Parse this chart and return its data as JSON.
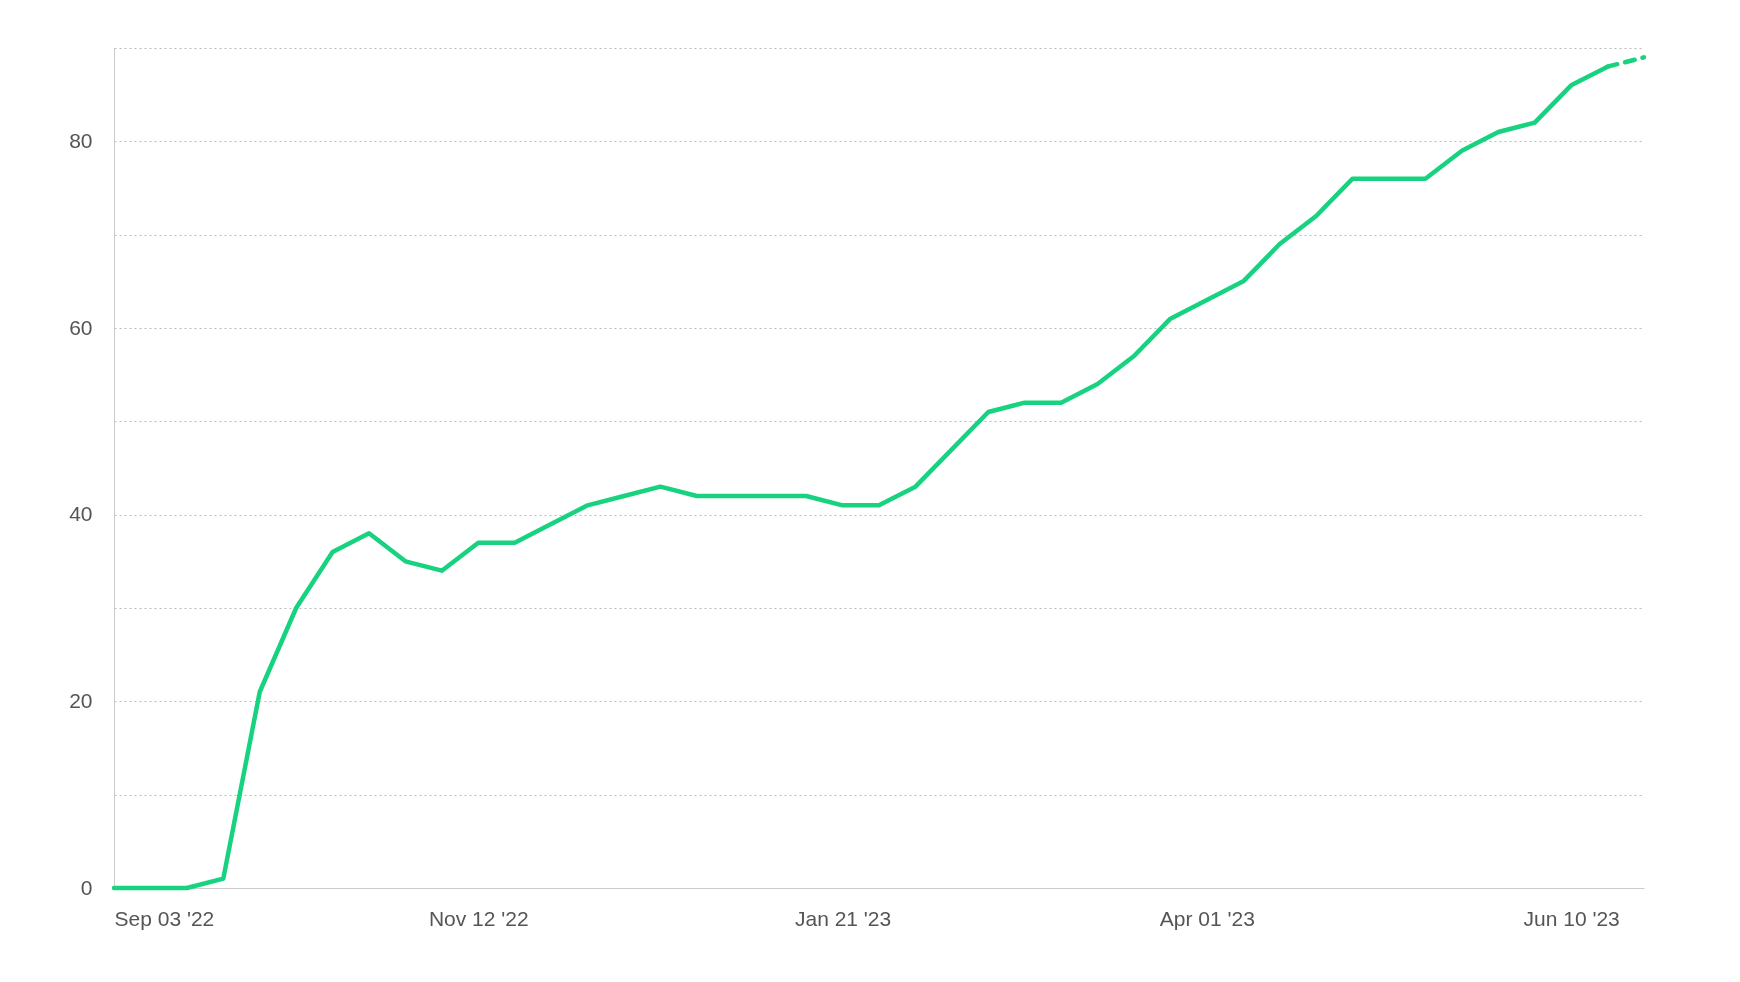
{
  "chart_data": {
    "type": "line",
    "xlim": [
      "2022-09-03",
      "2023-06-24"
    ],
    "ylim": [
      0,
      90
    ],
    "xticks": [
      {
        "value": "2022-09-03",
        "label": "Sep 03 '22"
      },
      {
        "value": "2022-11-12",
        "label": "Nov 12 '22"
      },
      {
        "value": "2023-01-21",
        "label": "Jan 21 '23"
      },
      {
        "value": "2023-04-01",
        "label": "Apr 01 '23"
      },
      {
        "value": "2023-06-10",
        "label": "Jun 10 '23"
      }
    ],
    "yticks": [
      0,
      {
        "value": 10,
        "label": null
      },
      20,
      {
        "value": 30,
        "label": null
      },
      40,
      {
        "value": 50,
        "label": null
      },
      60,
      {
        "value": 70,
        "label": null
      },
      80,
      {
        "value": 90,
        "label": null
      }
    ],
    "grid": "y",
    "marker": "none",
    "series": [
      {
        "color": "#17d27e",
        "line_style": "solid",
        "x": [
          "2022-09-03",
          "2022-09-10",
          "2022-09-17",
          "2022-09-24",
          "2022-10-01",
          "2022-10-08",
          "2022-10-15",
          "2022-10-22",
          "2022-10-29",
          "2022-11-05",
          "2022-11-12",
          "2022-11-19",
          "2022-11-26",
          "2022-12-03",
          "2022-12-10",
          "2022-12-17",
          "2022-12-24",
          "2022-12-31",
          "2023-01-07",
          "2023-01-14",
          "2023-01-21",
          "2023-01-28",
          "2023-02-04",
          "2023-02-11",
          "2023-02-18",
          "2023-02-25",
          "2023-03-04",
          "2023-03-11",
          "2023-03-18",
          "2023-03-25",
          "2023-04-01",
          "2023-04-08",
          "2023-04-15",
          "2023-04-22",
          "2023-04-29",
          "2023-05-06",
          "2023-05-13",
          "2023-05-20",
          "2023-05-27",
          "2023-06-03",
          "2023-06-10",
          "2023-06-17"
        ],
        "values": [
          0,
          0,
          0,
          1,
          21,
          30,
          36,
          38,
          35,
          34,
          37,
          37,
          39,
          41,
          42,
          43,
          42,
          42,
          42,
          42,
          41,
          41,
          43,
          47,
          51,
          52,
          52,
          54,
          57,
          61,
          63,
          65,
          69,
          72,
          76,
          76,
          76,
          79,
          81,
          82,
          86,
          88
        ]
      },
      {
        "color": "#17d27e",
        "line_style": "dashed",
        "x": [
          "2023-06-17",
          "2023-06-24"
        ],
        "values": [
          88,
          89
        ]
      }
    ]
  }
}
